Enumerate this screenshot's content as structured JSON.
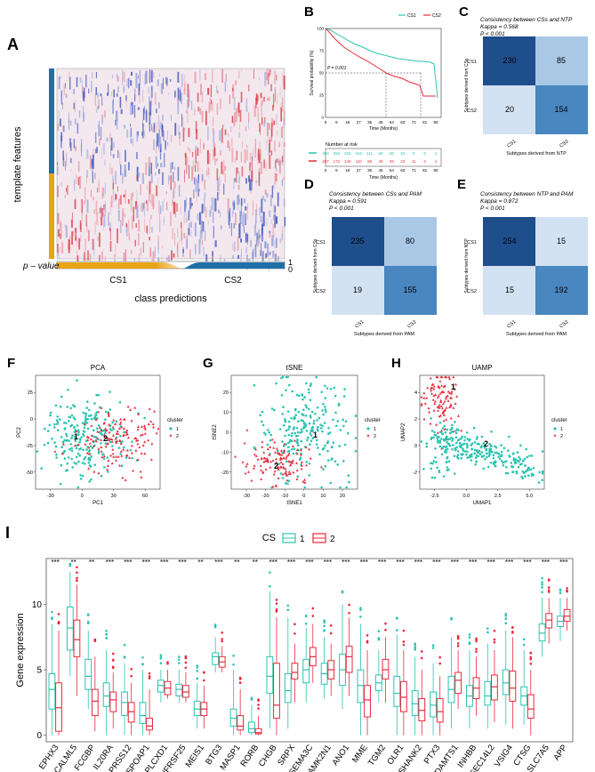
{
  "colors": {
    "cs1": "#2bc4b0",
    "cs2": "#e8293a",
    "dark_blue": "#1f4e8c",
    "mid_blue": "#4a86bf",
    "light_blue": "#a9c8e6",
    "pale_blue": "#d3e2f2",
    "bar_orange": "#e8a317",
    "bar_blue": "#1f6fa8"
  },
  "panels": {
    "A": "A",
    "B": "B",
    "C": "C",
    "D": "D",
    "E": "E",
    "F": "F",
    "G": "G",
    "H": "H",
    "I": "I"
  },
  "panel_a": {
    "ylabel": "template features",
    "pvalue_label": "p – value",
    "scale_top": "1",
    "scale_bottom": "0",
    "group1": "CS1",
    "group2": "CS2",
    "xlabel": "class predictions"
  },
  "panel_b": {
    "legend": [
      "CS1",
      "CS2"
    ],
    "ylabel": "Survival probability (%)",
    "xlabel": "Time (Months)",
    "pvalue": "P = 0.001",
    "risk_title": "Number at risk",
    "x_ticks": [
      "0",
      "9",
      "18",
      "27",
      "36",
      "45",
      "54",
      "63",
      "72",
      "81",
      "90"
    ],
    "y_ticks": [
      "100",
      "75",
      "50",
      "25",
      "0"
    ],
    "risk_cs1": [
      "359",
      "294",
      "226",
      "162",
      "111",
      "68",
      "36",
      "23",
      "8",
      "5",
      "1"
    ],
    "risk_cs2": [
      "257",
      "172",
      "149",
      "110",
      "65",
      "45",
      "35",
      "23",
      "11",
      "2",
      "1"
    ]
  },
  "panel_c": {
    "title": "Consistency between CSs and NTP",
    "kappa": "Kappa = 0.568",
    "p": "P < 0.001",
    "ylabel": "Subtypes derived from CSs",
    "xlabel": "Subtypes derived from NTP",
    "row_labels": [
      "CS1",
      "CS2"
    ],
    "col_labels": [
      "CS1",
      "CS2"
    ],
    "cells": [
      "230",
      "85",
      "20",
      "154"
    ]
  },
  "panel_d": {
    "title": "Consistency between CSs and PAM",
    "kappa": "Kappa = 0.591",
    "p": "P < 0.001",
    "ylabel": "Subtypes derived from CSs",
    "xlabel": "Subtypes derived from PAM",
    "row_labels": [
      "CS1",
      "CS2"
    ],
    "col_labels": [
      "CS1",
      "CS2"
    ],
    "cells": [
      "235",
      "80",
      "19",
      "155"
    ]
  },
  "panel_e": {
    "title": "Consistency between NTP and PAM",
    "kappa": "Kappa = 0.872",
    "p": "P < 0.001",
    "ylabel": "Subtypes derived from NTP",
    "xlabel": "Subtypes derived from PAM",
    "row_labels": [
      "CS1",
      "CS2"
    ],
    "col_labels": [
      "CS1",
      "CS2"
    ],
    "cells": [
      "254",
      "15",
      "15",
      "192"
    ]
  },
  "panel_f": {
    "title": "PCA",
    "xlabel": "PC1",
    "ylabel": "PC2",
    "x_ticks": [
      "-30",
      "0",
      "30",
      "60"
    ],
    "y_ticks": [
      "25",
      "0",
      "-25",
      "-50"
    ],
    "legend_title": "cluster",
    "legend": [
      "1",
      "2"
    ],
    "cluster_labels": [
      "1",
      "2"
    ]
  },
  "panel_g": {
    "title": "tSNE",
    "xlabel": "tSNE1",
    "ylabel": "tSNE2",
    "x_ticks": [
      "-30",
      "-20",
      "-10",
      "0",
      "10",
      "20"
    ],
    "y_ticks": [
      "20",
      "10",
      "0",
      "-10",
      "-20"
    ],
    "legend_title": "cluster",
    "legend": [
      "1",
      "2"
    ],
    "cluster_labels": [
      "1",
      "2"
    ]
  },
  "panel_h": {
    "title": "UAMP",
    "xlabel": "UMAP1",
    "ylabel": "UMAP2",
    "x_ticks": [
      "-2.5",
      "0.0",
      "2.5",
      "5.0"
    ],
    "y_ticks": [
      "4",
      "2",
      "0",
      "-2"
    ],
    "legend_title": "cluster",
    "legend": [
      "1",
      "2"
    ],
    "cluster_labels": [
      "1",
      "2"
    ]
  },
  "chart_data": {
    "type": "box",
    "title": "",
    "legend_title": "CS",
    "legend": [
      "1",
      "2"
    ],
    "ylabel": "Gene expression",
    "xlabel": "",
    "ylim": [
      -0.5,
      13.5
    ],
    "y_ticks": [
      "0",
      "5",
      "10"
    ],
    "categories": [
      "EPHX3",
      "CALML5",
      "FCGBP",
      "IL20RA",
      "PRSS12",
      "TSPOAP1",
      "PLCXD1",
      "TNFRSF25",
      "MEIS1",
      "BTG3",
      "MASP1",
      "RORB",
      "CHGB",
      "SRPX",
      "SEMA3C",
      "CAMK2N1",
      "ANO1",
      "MME",
      "TGM2",
      "OLR1",
      "SHANK2",
      "PTX3",
      "ADAMTS1",
      "INHBB",
      "SEC14L2",
      "VSIG4",
      "CTSG",
      "SLC7A5",
      "APP"
    ],
    "significance": [
      "***",
      "**",
      "**",
      "***",
      "***",
      "***",
      "***",
      "***",
      "**",
      "***",
      "**",
      "**",
      "***",
      "***",
      "***",
      "***",
      "***",
      "***",
      "***",
      "***",
      "***",
      "***",
      "***",
      "***",
      "***",
      "***",
      "***",
      "***",
      "***"
    ],
    "series": [
      {
        "name": "1",
        "median": [
          3.5,
          8.2,
          4.5,
          3.0,
          2.5,
          1.5,
          3.8,
          3.5,
          2.0,
          6.0,
          1.3,
          0.5,
          4.5,
          3.4,
          5.0,
          4.7,
          5.0,
          3.8,
          4.0,
          3.2,
          2.4,
          2.3,
          3.5,
          3.0,
          3.0,
          4.0,
          3.0,
          7.8,
          8.7
        ],
        "q1": [
          2.0,
          6.5,
          3.5,
          2.2,
          1.5,
          0.9,
          3.3,
          3.0,
          1.5,
          5.4,
          0.7,
          0.2,
          3.2,
          2.5,
          4.0,
          3.9,
          3.8,
          2.5,
          3.4,
          2.2,
          1.5,
          1.4,
          2.5,
          2.2,
          2.3,
          3.1,
          2.3,
          7.2,
          8.3
        ],
        "q3": [
          4.7,
          9.8,
          5.8,
          4.0,
          3.3,
          2.5,
          4.2,
          3.9,
          2.6,
          6.3,
          2.0,
          1.0,
          6.0,
          4.7,
          5.8,
          5.5,
          6.2,
          5.0,
          4.6,
          4.5,
          3.4,
          3.3,
          4.5,
          3.8,
          4.1,
          5.0,
          3.7,
          8.5,
          9.1
        ],
        "low": [
          0.0,
          4.5,
          2.0,
          0.0,
          0.0,
          0.0,
          2.5,
          2.5,
          0.5,
          4.8,
          0.0,
          0.0,
          0.5,
          0.5,
          2.5,
          2.8,
          2.0,
          0.0,
          2.5,
          0.0,
          0.0,
          0.0,
          0.5,
          0.5,
          0.5,
          0.8,
          0.8,
          6.0,
          7.2
        ],
        "high": [
          8.5,
          12.5,
          8.0,
          6.5,
          5.5,
          5.0,
          5.0,
          5.0,
          4.0,
          7.5,
          5.0,
          2.3,
          11.0,
          9.0,
          8.2,
          7.5,
          10.0,
          8.5,
          6.5,
          7.7,
          6.0,
          5.5,
          7.5,
          6.5,
          7.0,
          8.0,
          6.5,
          10.5,
          10.5
        ]
      },
      {
        "name": "2",
        "median": [
          2.1,
          7.3,
          2.6,
          2.7,
          1.8,
          0.7,
          3.6,
          3.3,
          2.0,
          5.6,
          0.7,
          0.2,
          2.3,
          4.8,
          6.0,
          5.0,
          6.0,
          2.7,
          5.0,
          2.9,
          1.9,
          1.8,
          4.2,
          3.6,
          3.7,
          3.6,
          2.0,
          8.8,
          9.1
        ],
        "q1": [
          0.3,
          6.0,
          1.5,
          1.8,
          1.0,
          0.4,
          3.1,
          2.9,
          1.5,
          5.2,
          0.4,
          0.1,
          1.3,
          4.3,
          5.3,
          4.3,
          4.8,
          1.4,
          4.3,
          1.8,
          1.1,
          1.0,
          3.2,
          2.8,
          2.7,
          2.6,
          1.3,
          8.2,
          8.7
        ],
        "q3": [
          4.0,
          8.8,
          3.5,
          3.3,
          2.5,
          1.3,
          4.1,
          3.8,
          2.5,
          6.0,
          1.5,
          0.5,
          5.5,
          5.5,
          6.7,
          5.7,
          6.8,
          3.8,
          5.8,
          4.1,
          2.8,
          2.8,
          4.8,
          4.4,
          4.6,
          4.9,
          3.1,
          9.3,
          9.6
        ],
        "low": [
          0.0,
          3.0,
          0.3,
          0.5,
          0.0,
          0.0,
          2.8,
          2.5,
          0.5,
          4.8,
          0.0,
          0.0,
          0.0,
          2.5,
          4.0,
          3.0,
          3.0,
          0.0,
          2.5,
          0.0,
          0.0,
          0.0,
          2.0,
          1.5,
          1.0,
          0.5,
          0.0,
          7.0,
          8.0
        ],
        "high": [
          8.0,
          11.5,
          6.0,
          4.8,
          4.0,
          3.5,
          5.0,
          4.8,
          3.8,
          6.8,
          3.5,
          1.5,
          9.0,
          7.0,
          8.5,
          7.0,
          9.0,
          6.5,
          7.5,
          6.5,
          5.0,
          4.5,
          6.5,
          6.0,
          6.5,
          7.5,
          5.0,
          10.5,
          10.5
        ]
      }
    ]
  }
}
